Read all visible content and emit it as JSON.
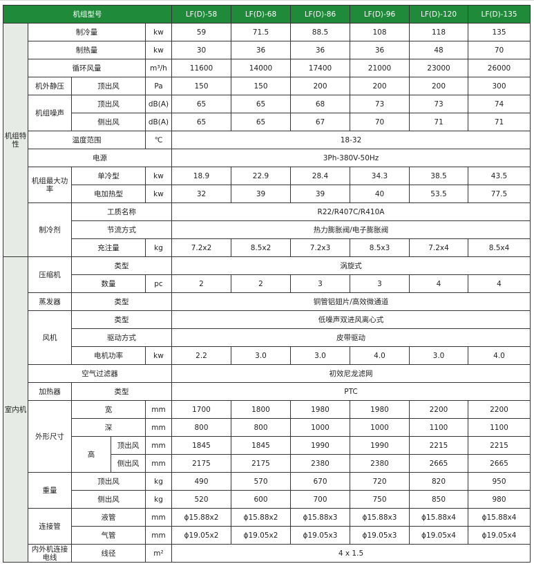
{
  "header": {
    "title": "机组型号",
    "models": [
      "LF(D)-58",
      "LF(D)-68",
      "LF(D)-86",
      "LF(D)-96",
      "LF(D)-120",
      "LF(D)-135"
    ]
  },
  "colors": {
    "header_bg": "#1f8a3a",
    "group_bg": "#e6ebe6"
  },
  "rows": [
    {
      "cells": [
        "机组特性",
        "制冷量",
        "kw",
        "59",
        "71.5",
        "88.5",
        "108",
        "118",
        "135"
      ]
    },
    {
      "cells": [
        "制热量",
        "kw",
        "30",
        "36",
        "36",
        "36",
        "48",
        "70"
      ]
    },
    {
      "cells": [
        "循环风量",
        "m³/h",
        "11600",
        "14000",
        "17400",
        "21000",
        "23000",
        "26000"
      ]
    },
    {
      "cells": [
        "机外静压",
        "顶出风",
        "Pa",
        "150",
        "150",
        "200",
        "200",
        "200",
        "300"
      ]
    },
    {
      "cells": [
        "机组噪声",
        "顶出风",
        "dB(A)",
        "65",
        "65",
        "68",
        "73",
        "73",
        "74"
      ]
    },
    {
      "cells": [
        "侧出风",
        "dB(A)",
        "65",
        "65",
        "67",
        "70",
        "71",
        "71"
      ]
    },
    {
      "cells": [
        "温度范围",
        "℃",
        "18-32"
      ]
    },
    {
      "cells": [
        "电源",
        "3Ph-380V-50Hz"
      ]
    },
    {
      "cells": [
        "机组最大功率",
        "单冷型",
        "kw",
        "18.9",
        "22.9",
        "28.4",
        "34.3",
        "38.5",
        "43.5"
      ]
    },
    {
      "cells": [
        "电加热型",
        "kw",
        "32",
        "39",
        "39",
        "40",
        "53.5",
        "77.5"
      ]
    },
    {
      "cells": [
        "制冷剂",
        "工质名称",
        "R22/R407C/R410A"
      ]
    },
    {
      "cells": [
        "节流方式",
        "热力膨胀阀/电子膨胀阀"
      ]
    },
    {
      "cells": [
        "充注量",
        "kg",
        "7.2x2",
        "8.5x2",
        "7.2x3",
        "8.5x3",
        "7.2x4",
        "8.5x4"
      ]
    },
    {
      "cells": [
        "室内机",
        "压缩机",
        "类型",
        "涡旋式"
      ]
    },
    {
      "cells": [
        "数量",
        "pc",
        "2",
        "2",
        "3",
        "3",
        "4",
        "4"
      ]
    },
    {
      "cells": [
        "蒸发器",
        "类型",
        "铜管铝翅片/高效微通道"
      ]
    },
    {
      "cells": [
        "风机",
        "类型",
        "低噪声双进风离心式"
      ]
    },
    {
      "cells": [
        "驱动方式",
        "皮带驱动"
      ]
    },
    {
      "cells": [
        "电机功率",
        "kw",
        "2.2",
        "3.0",
        "3.0",
        "4.0",
        "3.0",
        "4.0"
      ]
    },
    {
      "cells": [
        "空气过滤器",
        "初效尼龙滤网"
      ]
    },
    {
      "cells": [
        "加热器",
        "类型",
        "PTC"
      ]
    },
    {
      "cells": [
        "外形尺寸",
        "宽",
        "mm",
        "1700",
        "1800",
        "1980",
        "1980",
        "2200",
        "2200"
      ]
    },
    {
      "cells": [
        "深",
        "mm",
        "800",
        "800",
        "1000",
        "1000",
        "1100",
        "1100"
      ]
    },
    {
      "cells": [
        "高",
        "顶出风",
        "mm",
        "1845",
        "1845",
        "1990",
        "1990",
        "2215",
        "2215"
      ]
    },
    {
      "cells": [
        "侧出风",
        "mm",
        "2175",
        "2175",
        "2380",
        "2380",
        "2665",
        "2665"
      ]
    },
    {
      "cells": [
        "重量",
        "顶出风",
        "kg",
        "490",
        "570",
        "670",
        "720",
        "820",
        "950"
      ]
    },
    {
      "cells": [
        "侧出风",
        "kg",
        "520",
        "600",
        "700",
        "750",
        "850",
        "980"
      ]
    },
    {
      "cells": [
        "连接管",
        "液管",
        "mm",
        "ϕ15.88x2",
        "ϕ15.88x2",
        "ϕ15.88x3",
        "ϕ15.88x3",
        "ϕ15.88x4",
        "ϕ15.88x4"
      ]
    },
    {
      "cells": [
        "气管",
        "mm",
        "ϕ19.05x2",
        "ϕ19.05x2",
        "ϕ19.05x3",
        "ϕ19.05x3",
        "ϕ19.05x4",
        "ϕ19.05x4"
      ]
    },
    {
      "cells": [
        "内外机连接电线",
        "线径",
        "m²",
        "4 x 1.5"
      ]
    }
  ]
}
